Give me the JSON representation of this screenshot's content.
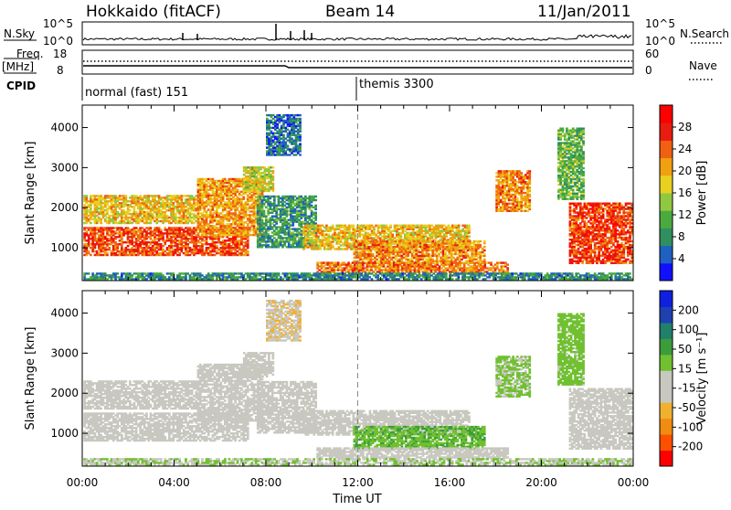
{
  "header": {
    "radar": "Hokkaido (fitACF)",
    "beam": "Beam 14",
    "date": "11/Jan/2011"
  },
  "noise_panel": {
    "left_label": "N.Sky",
    "right_label": "N.Search",
    "ticks": [
      "10^5",
      "10^0"
    ]
  },
  "freq_panel": {
    "left_label_1": "Freq.",
    "left_label_2": "[MHz]",
    "left_ticks": [
      "18",
      "8"
    ],
    "right_ticks": [
      "60",
      "0"
    ],
    "right_label": "Nave"
  },
  "cpid_panel": {
    "label": "CPID",
    "modes": [
      "normal (fast) 151",
      "themis 3300"
    ]
  },
  "chart_data": [
    {
      "type": "heatmap",
      "title": "",
      "xlabel": "",
      "ylabel": "Slant Range [km]",
      "x": [
        "00:00",
        "04:00",
        "08:00",
        "12:00",
        "16:00",
        "20:00",
        "00:00"
      ],
      "y_ticks": [
        "4000",
        "3000",
        "2000",
        "1000"
      ],
      "ylim": [
        180,
        4560
      ],
      "colorbar": {
        "label": "Power [dB]",
        "ticks": [
          "28",
          "24",
          "20",
          "16",
          "12",
          "8",
          "4"
        ],
        "range": [
          0,
          32
        ],
        "colors": [
          "#1010ff",
          "#2060c0",
          "#2f8f5f",
          "#4aaa40",
          "#90c840",
          "#e8d020",
          "#f0a010",
          "#f06010",
          "#e81c10",
          "#ff0000"
        ]
      }
    },
    {
      "type": "heatmap",
      "title": "",
      "xlabel": "Time UT",
      "ylabel": "Slant Range [km]",
      "x": [
        "00:00",
        "04:00",
        "08:00",
        "12:00",
        "16:00",
        "20:00",
        "00:00"
      ],
      "y_ticks": [
        "4000",
        "3000",
        "2000",
        "1000"
      ],
      "ylim": [
        180,
        4560
      ],
      "colorbar": {
        "label": "Velocity [m s⁻¹]",
        "ticks": [
          "200",
          "100",
          "50",
          "15",
          "-15",
          "-50",
          "-100",
          "-200"
        ],
        "range": [
          -250,
          250
        ],
        "colors": [
          "#ff0000",
          "#ff5000",
          "#f08c10",
          "#f0b030",
          "#c8c8c0",
          "#c8c8c0",
          "#70c030",
          "#3c9c3c",
          "#20806a",
          "#2040b0",
          "#1020e0"
        ]
      }
    }
  ]
}
